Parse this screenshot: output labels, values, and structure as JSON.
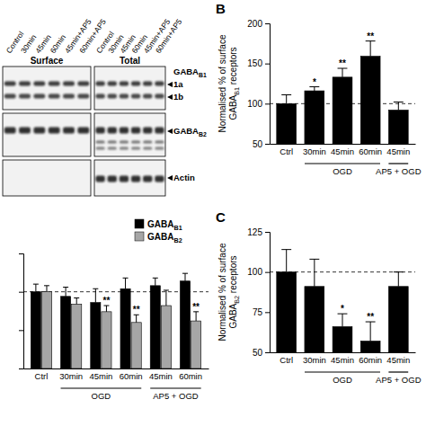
{
  "chart_data": [
    {
      "type": "bar",
      "panel_label": "B",
      "y_label": "Normalised % of surface GABAB1 receptors",
      "categories": [
        "Ctrl",
        "30min",
        "45min",
        "60min",
        "45min"
      ],
      "group_labels": [
        null,
        "OGD",
        "OGD",
        "OGD",
        "AP5 + OGD"
      ],
      "values": [
        100,
        116,
        133,
        159,
        92
      ],
      "errors": [
        11,
        5,
        11,
        19,
        10
      ],
      "significance": [
        null,
        "*",
        "**",
        "**",
        null
      ],
      "color": "#000000",
      "reference_line": 100,
      "ylim": [
        50,
        200
      ],
      "yticks": [
        50,
        100,
        150,
        200
      ]
    },
    {
      "type": "bar",
      "categories": [
        "Ctrl",
        "30min",
        "45min",
        "60min",
        "45min",
        "60min"
      ],
      "group_labels": [
        null,
        "OGD",
        "OGD",
        "OGD",
        "AP5 + OGD",
        "AP5 + OGD"
      ],
      "series": [
        {
          "name": "GABAB1",
          "color": "#000000",
          "values": [
            100,
            97,
            93,
            102,
            104,
            107
          ],
          "errors": [
            5,
            6,
            9,
            7,
            5,
            5
          ]
        },
        {
          "name": "GABAB2",
          "color": "#a6a6a6",
          "values": [
            100,
            92,
            87,
            80,
            91,
            81
          ],
          "errors": [
            4,
            4,
            4,
            5,
            10,
            6
          ],
          "significance": [
            null,
            null,
            "**",
            "**",
            null,
            "**"
          ]
        }
      ],
      "reference_line": 100,
      "ylim": [
        50,
        125
      ],
      "yticks": [
        50,
        75,
        100,
        125
      ],
      "tick_labels": "x",
      "legend": "top-right"
    },
    {
      "type": "bar",
      "panel_label": "C",
      "y_label": "Normalised % of surface GABAB2 receptors",
      "categories": [
        "Ctrl",
        "30min",
        "45min",
        "60min",
        "45min"
      ],
      "group_labels": [
        null,
        "OGD",
        "OGD",
        "OGD",
        "AP5 + OGD"
      ],
      "values": [
        100,
        91,
        66,
        57,
        91
      ],
      "errors": [
        14,
        17,
        8,
        12,
        9
      ],
      "significance": [
        null,
        null,
        "*",
        "**",
        null
      ],
      "color": "#000000",
      "reference_line": 100,
      "ylim": [
        50,
        125
      ],
      "yticks": [
        50,
        75,
        100,
        125
      ]
    }
  ],
  "blot": {
    "sections": [
      "Surface",
      "Total"
    ],
    "lanes": [
      "Control",
      "30min",
      "45min",
      "60min",
      "45min+AP5",
      "60min+AP5"
    ],
    "band_labels": [
      "GABAB1",
      "1a",
      "1b",
      "GABAB2",
      "Actin"
    ]
  }
}
